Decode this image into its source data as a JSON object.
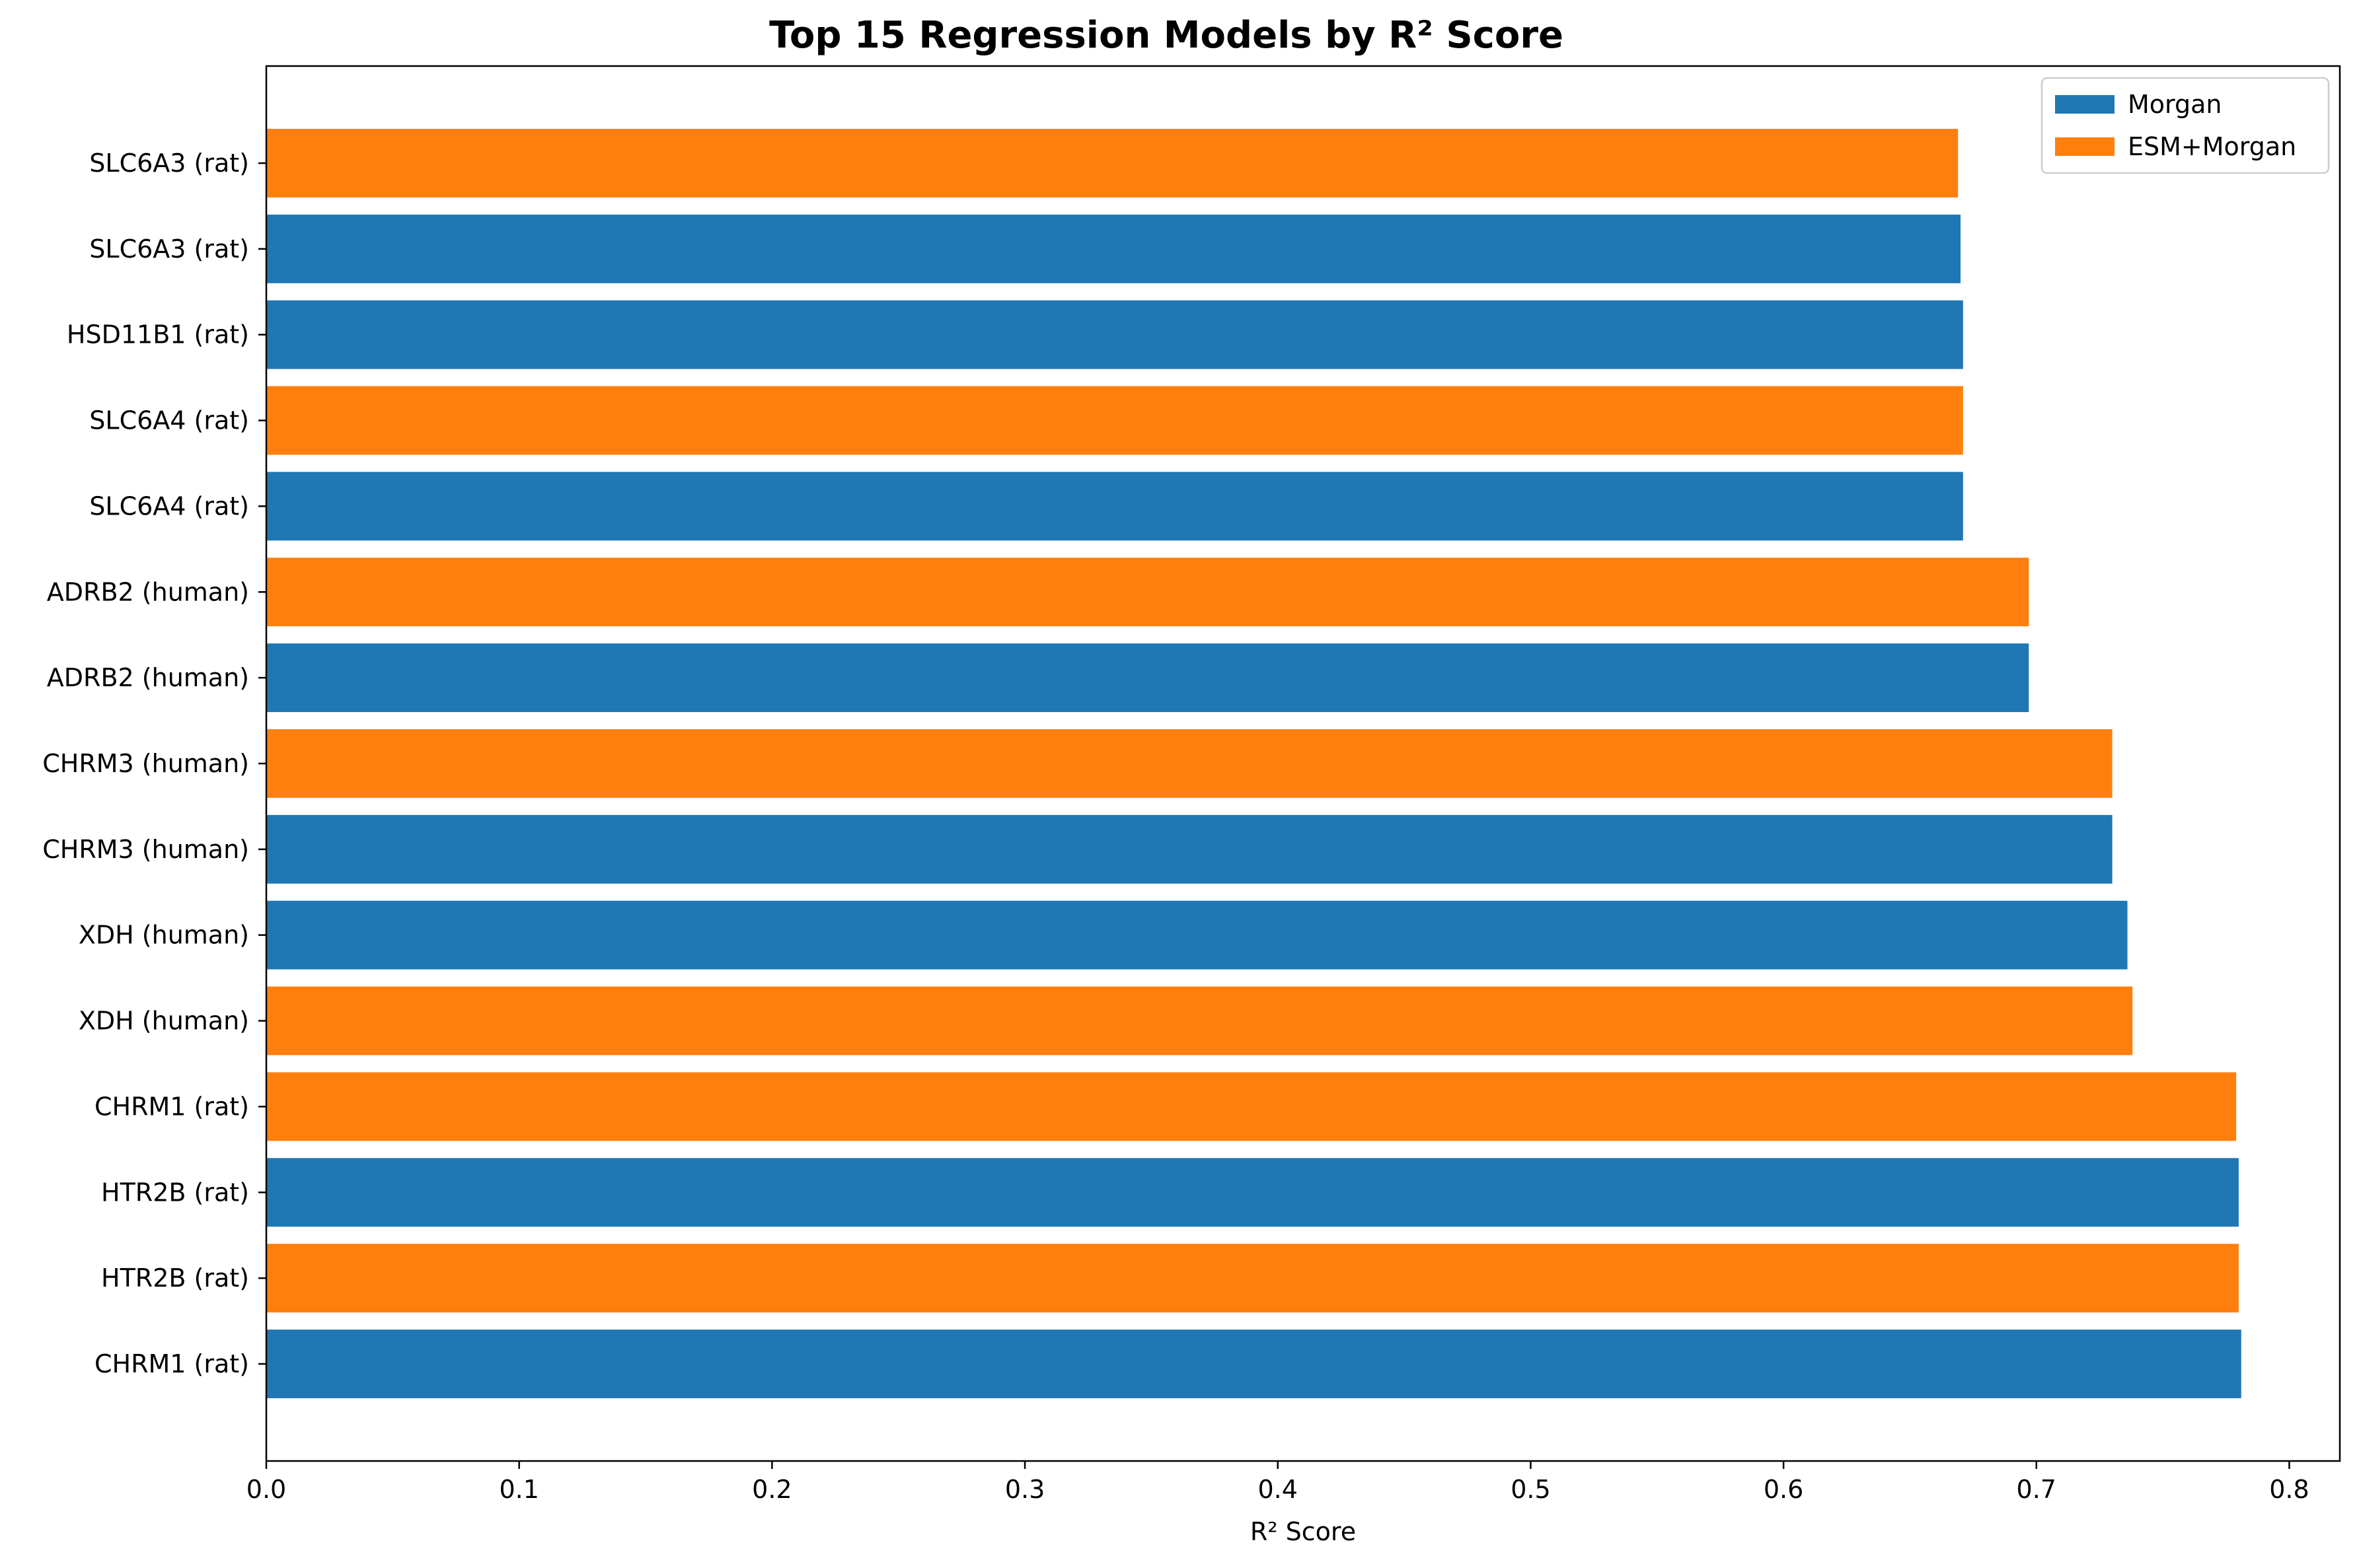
{
  "chart_data": {
    "type": "bar",
    "orientation": "horizontal",
    "title": "Top 15 Regression Models by R² Score",
    "xlabel": "R² Score",
    "ylabel": "",
    "xlim": [
      0.0,
      0.82
    ],
    "xticks": [
      "0.0",
      "0.1",
      "0.2",
      "0.3",
      "0.4",
      "0.5",
      "0.6",
      "0.7",
      "0.8"
    ],
    "xtick_values": [
      0.0,
      0.1,
      0.2,
      0.3,
      0.4,
      0.5,
      0.6,
      0.7,
      0.8
    ],
    "grid": false,
    "legend_position": "top-right",
    "legend": [
      {
        "name": "Morgan",
        "color": "#1f77b4"
      },
      {
        "name": "ESM+Morgan",
        "color": "#ff7f0e"
      }
    ],
    "bars": [
      {
        "label": "CHRM1 (rat)",
        "value": 0.781,
        "series": "Morgan"
      },
      {
        "label": "HTR2B (rat)",
        "value": 0.78,
        "series": "ESM+Morgan"
      },
      {
        "label": "HTR2B (rat)",
        "value": 0.78,
        "series": "Morgan"
      },
      {
        "label": "CHRM1 (rat)",
        "value": 0.779,
        "series": "ESM+Morgan"
      },
      {
        "label": "XDH (human)",
        "value": 0.738,
        "series": "ESM+Morgan"
      },
      {
        "label": "XDH (human)",
        "value": 0.736,
        "series": "Morgan"
      },
      {
        "label": "CHRM3 (human)",
        "value": 0.73,
        "series": "Morgan"
      },
      {
        "label": "CHRM3 (human)",
        "value": 0.73,
        "series": "ESM+Morgan"
      },
      {
        "label": "ADRB2 (human)",
        "value": 0.697,
        "series": "Morgan"
      },
      {
        "label": "ADRB2 (human)",
        "value": 0.697,
        "series": "ESM+Morgan"
      },
      {
        "label": "SLC6A4 (rat)",
        "value": 0.671,
        "series": "Morgan"
      },
      {
        "label": "SLC6A4 (rat)",
        "value": 0.671,
        "series": "ESM+Morgan"
      },
      {
        "label": "HSD11B1 (rat)",
        "value": 0.671,
        "series": "Morgan"
      },
      {
        "label": "SLC6A3 (rat)",
        "value": 0.67,
        "series": "Morgan"
      },
      {
        "label": "SLC6A3 (rat)",
        "value": 0.669,
        "series": "ESM+Morgan"
      }
    ]
  }
}
